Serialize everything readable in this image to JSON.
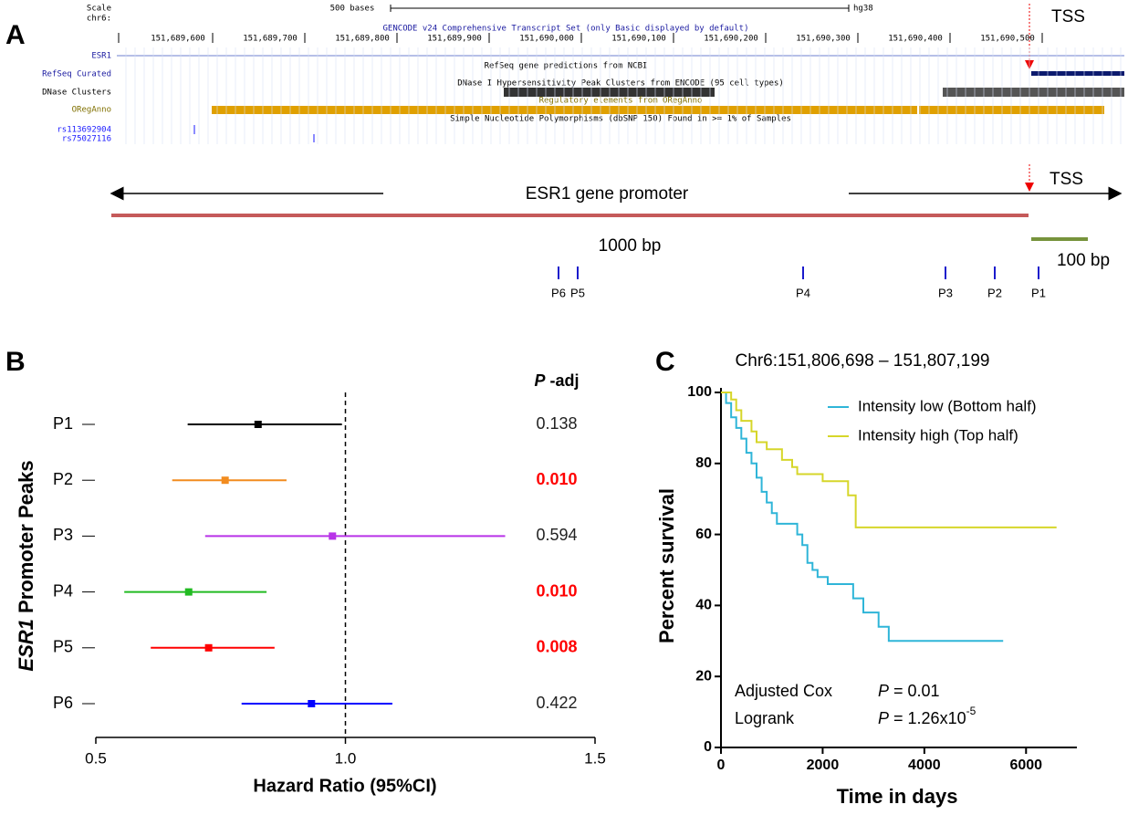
{
  "panel_a": {
    "label": "A",
    "browser": {
      "scale": "Scale",
      "chrom": "chr6:",
      "span": "500 bases",
      "assembly": "hg38",
      "positions": [
        "151,689,600",
        "151,689,700",
        "151,689,800",
        "151,689,900",
        "151,690,000",
        "151,690,100",
        "151,690,200",
        "151,690,300",
        "151,690,400",
        "151,690,500"
      ],
      "gencode": "GENCODE v24 Comprehensive Transcript Set (only Basic displayed by default)",
      "tracks": {
        "esr1": "ESR1",
        "refseq": "RefSeq Curated",
        "refseq_desc": "RefSeq gene predictions from NCBI",
        "dnase": "DNase Clusters",
        "dnase_desc": "DNase I Hypersensitivity Peak Clusters from ENCODE (95 cell types)",
        "oreganno": "ORegAnno",
        "oreganno_desc": "Regulatory elements from ORegAnno",
        "snp_desc": "Simple Nucleotide Polymorphisms (dbSNP 150) Found in >= 1% of Samples",
        "snps": [
          "rs113692904",
          "rs75027116"
        ]
      },
      "tss": "TSS"
    },
    "promoter": {
      "title": "ESR1 gene promoter",
      "tss": "TSS",
      "scale_long": "1000 bp",
      "scale_short": "100 bp",
      "peaks": [
        "P6",
        "P5",
        "P4",
        "P3",
        "P2",
        "P1"
      ]
    }
  },
  "chart_data": [
    {
      "type": "forest",
      "panel_label": "B",
      "categories": [
        "P1",
        "P2",
        "P3",
        "P4",
        "P5",
        "P6"
      ],
      "values": [
        0.825,
        0.759,
        0.974,
        0.686,
        0.726,
        0.932
      ],
      "ci_low": [
        0.684,
        0.653,
        0.719,
        0.557,
        0.61,
        0.792
      ],
      "ci_high": [
        0.993,
        0.882,
        1.32,
        0.842,
        0.858,
        1.094
      ],
      "colors": [
        "#000000",
        "#f28c1f",
        "#b833e8",
        "#22bb22",
        "#ff0000",
        "#0000ff"
      ],
      "p_adj_header": [
        "P",
        " -adj"
      ],
      "p_adj": [
        "0.138",
        "0.010",
        "0.594",
        "0.010",
        "0.008",
        "0.422"
      ],
      "p_adj_colors": [
        "#222222",
        "#ff0000",
        "#222222",
        "#ff0000",
        "#ff0000",
        "#222222"
      ],
      "ylabel": [
        "ESR1",
        " Promoter Peaks"
      ],
      "xlabel": "Hazard Ratio (95%CI)",
      "xlim": [
        0.5,
        1.5
      ],
      "xticks": [
        0.5,
        {
          "value": 1,
          "label": "1.0"
        },
        1.5
      ],
      "reference_line": 1
    },
    {
      "type": "step_line",
      "panel_label": "C",
      "title": "Chr6:151,806,698 – 151,807,199",
      "xlabel": "Time in days",
      "ylabel": "Percent survival",
      "xlim": [
        0,
        7000
      ],
      "xticks": [
        0,
        2000,
        4000,
        6000
      ],
      "ylim": [
        0,
        100
      ],
      "yticks": [
        0,
        20,
        40,
        60,
        80,
        100
      ],
      "series": [
        {
          "name": "Intensity low (Bottom half)",
          "color": "#2fb5d8",
          "x": [
            0,
            100,
            200,
            300,
            400,
            500,
            600,
            700,
            800,
            900,
            1000,
            1100,
            1500,
            1600,
            1700,
            1800,
            1900,
            2100,
            2600,
            2800,
            3100,
            3300,
            5550
          ],
          "values": [
            100,
            97,
            93,
            90,
            87,
            83,
            80,
            76,
            72,
            69,
            66,
            63,
            60,
            57,
            52,
            50,
            48,
            46,
            42,
            38,
            34,
            30,
            30
          ]
        },
        {
          "name": "Intensity high (Top half)",
          "color": "#d6d62a",
          "x": [
            0,
            200,
            300,
            400,
            600,
            700,
            900,
            1200,
            1400,
            1500,
            2000,
            2500,
            2650,
            6600
          ],
          "values": [
            100,
            98,
            95,
            92,
            89,
            86,
            84,
            81,
            79,
            77,
            75,
            71,
            62,
            62
          ]
        }
      ],
      "annotations": [
        {
          "text": "Adjusted Cox",
          "p": "P",
          "value": " = 0.01"
        },
        {
          "text": "Logrank",
          "p": "P",
          "value": " = 1.26x10",
          "sup": "-5"
        }
      ]
    }
  ]
}
